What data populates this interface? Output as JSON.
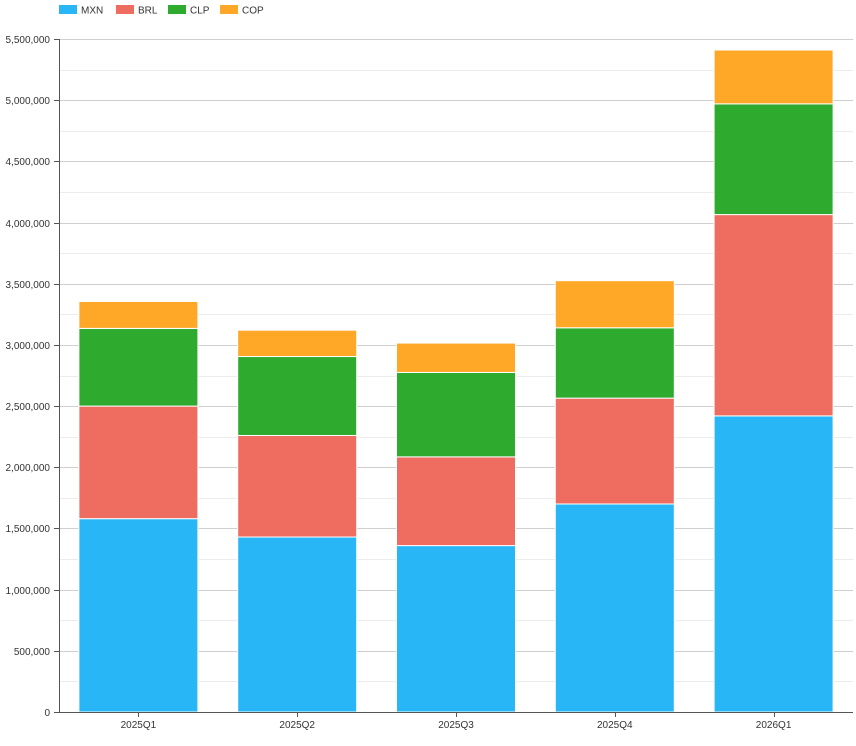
{
  "chart_data": {
    "type": "bar",
    "stacked": true,
    "title": "",
    "xlabel": "",
    "ylabel": "",
    "categories": [
      "2025Q1",
      "2025Q2",
      "2025Q3",
      "2025Q4",
      "2026Q1"
    ],
    "series": [
      {
        "name": "MXN",
        "color": "#29b6f6",
        "values": [
          1580000,
          1430000,
          1360000,
          1700000,
          2420000
        ]
      },
      {
        "name": "BRL",
        "color": "#ef6c60",
        "values": [
          920000,
          830000,
          725000,
          865000,
          1645000
        ]
      },
      {
        "name": "CLP",
        "color": "#2eaa2e",
        "values": [
          635000,
          645000,
          690000,
          575000,
          905000
        ]
      },
      {
        "name": "COP",
        "color": "#ffa726",
        "values": [
          220000,
          215000,
          240000,
          385000,
          440000
        ]
      }
    ],
    "ylim": [
      0,
      5500000
    ],
    "yticks": [
      0,
      500000,
      1000000,
      1500000,
      2000000,
      2500000,
      3000000,
      3500000,
      4000000,
      4500000,
      5000000,
      5500000
    ],
    "ytick_labels": [
      "0",
      "500,000",
      "1,000,000",
      "1,500,000",
      "2,000,000",
      "2,500,000",
      "3,000,000",
      "3,500,000",
      "4,000,000",
      "4,500,000",
      "5,000,000",
      "5,500,000"
    ],
    "grid": true,
    "legend": "top-left"
  }
}
